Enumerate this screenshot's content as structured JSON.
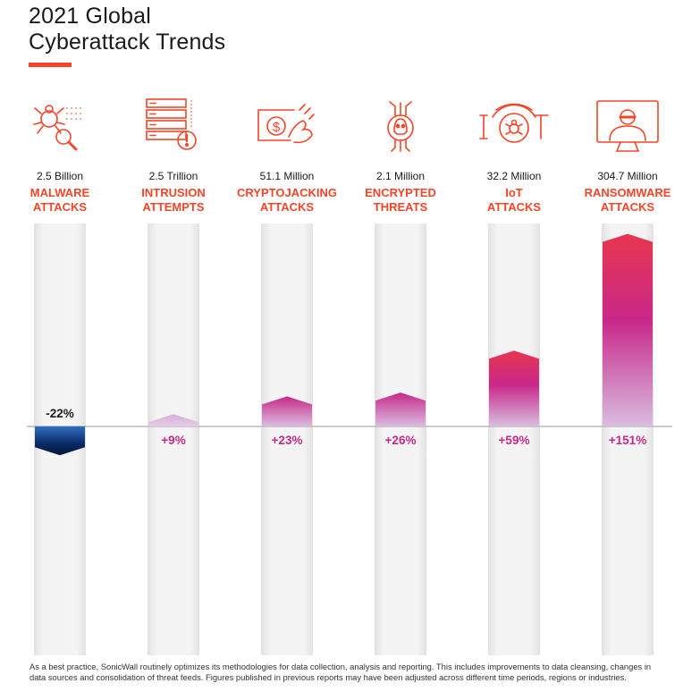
{
  "title_line1": "2021 Global",
  "title_line2": "Cyberattack Trends",
  "accent_color": "#f0462a",
  "footnote": "As a best practice, SonicWall routinely optimizes its methodologies for data collection, analysis and reporting. This includes improvements to data cleansing, changes in data sources and consolidation of threat feeds. Figures published in previous reports may have been adjusted across different time periods, regions or industries.",
  "chart_data": {
    "type": "bar",
    "categories": [
      {
        "volume": "2.5 Billion",
        "label_line1": "MALWARE",
        "label_line2": "ATTACKS",
        "icon": "malware-bug-icon"
      },
      {
        "volume": "2.5 Trillion",
        "label_line1": "INTRUSION",
        "label_line2": "ATTEMPTS",
        "icon": "server-alert-icon"
      },
      {
        "volume": "51.1 Million",
        "label_line1": "CRYPTOJACKING",
        "label_line2": "ATTACKS",
        "icon": "crypto-coin-hand-icon"
      },
      {
        "volume": "2.1 Million",
        "label_line1": "ENCRYPTED",
        "label_line2": "THREATS",
        "icon": "encrypted-skull-icon"
      },
      {
        "volume": "32.2 Million",
        "label_line1": "IoT",
        "label_line2": "ATTACKS",
        "icon": "iot-bug-icon"
      },
      {
        "volume": "304.7 Million",
        "label_line1": "RANSOMWARE",
        "label_line2": "ATTACKS",
        "icon": "ransomware-hacker-icon"
      }
    ],
    "values": [
      -22,
      9,
      23,
      26,
      59,
      151
    ],
    "value_labels": [
      "-22%",
      "+9%",
      "+23%",
      "+26%",
      "+59%",
      "+151%"
    ],
    "unit": "%",
    "ylim": [
      -90,
      170
    ],
    "colors": {
      "negative": "#0b2a66",
      "positive_top": "#e8364e",
      "positive_mid": "#c8288a",
      "positive_low": "#d9bde0",
      "category_label": "#f0462a"
    }
  }
}
